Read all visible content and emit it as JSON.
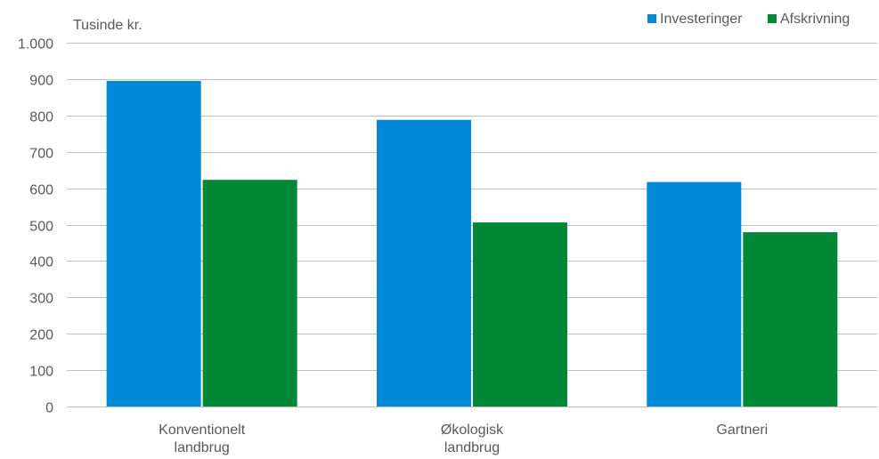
{
  "chart_data": {
    "type": "bar",
    "y_unit_label": "Tusinde kr.",
    "categories": [
      [
        "Konventionelt",
        "landbrug"
      ],
      [
        "Økologisk",
        "landbrug"
      ],
      [
        "Gartneri"
      ]
    ],
    "series": [
      {
        "name": "Investeringer",
        "color": "#0089d6",
        "values": [
          895,
          788,
          617
        ]
      },
      {
        "name": "Afskrivning",
        "color": "#008837",
        "values": [
          623,
          506,
          479
        ]
      }
    ],
    "ylim": [
      0,
      1000
    ],
    "yticks": [
      0,
      100,
      200,
      300,
      400,
      500,
      600,
      700,
      800,
      900,
      1000
    ],
    "ytick_labels": [
      "0",
      "100",
      "200",
      "300",
      "400",
      "500",
      "600",
      "700",
      "800",
      "900",
      "1.000"
    ],
    "grid": true,
    "gridline_color": "#bfbfbf",
    "legend_position": "top-right"
  }
}
